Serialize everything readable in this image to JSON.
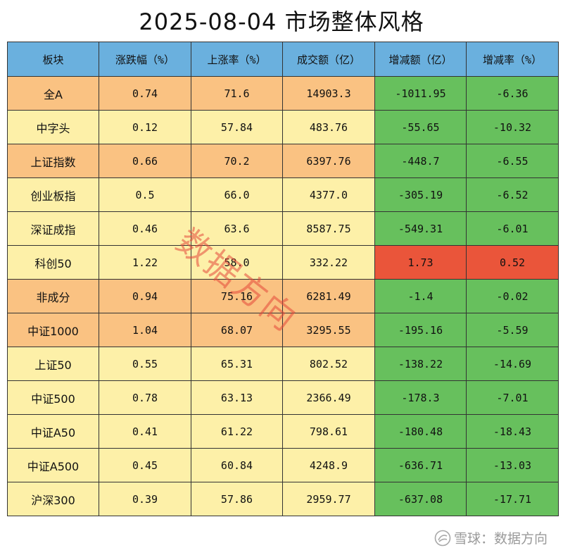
{
  "title": "2025-08-04 市场整体风格",
  "watermark": "数据方向",
  "footer": {
    "brand": "雪球：数据方向"
  },
  "colors": {
    "header": "#6ab0de",
    "orange": "#fac282",
    "light_yellow": "#fdf0a8",
    "green": "#67c05d",
    "red": "#ea553a"
  },
  "chart_data": {
    "type": "table",
    "columns": [
      "板块",
      "涨跌幅（%）",
      "上涨率（%）",
      "成交额（亿）",
      "增减额（亿）",
      "增减率（%）"
    ],
    "rows": [
      [
        "全A",
        "0.74",
        "71.6",
        "14903.3",
        "-1011.95",
        "-6.36"
      ],
      [
        "中字头",
        "0.12",
        "57.84",
        "483.76",
        "-55.65",
        "-10.32"
      ],
      [
        "上证指数",
        "0.66",
        "70.2",
        "6397.76",
        "-448.7",
        "-6.55"
      ],
      [
        "创业板指",
        "0.5",
        "66.0",
        "4377.0",
        "-305.19",
        "-6.52"
      ],
      [
        "深证成指",
        "0.46",
        "63.6",
        "8587.75",
        "-549.31",
        "-6.01"
      ],
      [
        "科创50",
        "1.22",
        "58.0",
        "332.22",
        "1.73",
        "0.52"
      ],
      [
        "非成分",
        "0.94",
        "75.16",
        "6281.49",
        "-1.4",
        "-0.02"
      ],
      [
        "中证1000",
        "1.04",
        "68.07",
        "3295.55",
        "-195.16",
        "-5.59"
      ],
      [
        "上证50",
        "0.55",
        "65.31",
        "802.52",
        "-138.22",
        "-14.69"
      ],
      [
        "中证500",
        "0.78",
        "63.13",
        "2366.49",
        "-178.3",
        "-7.01"
      ],
      [
        "中证A50",
        "0.41",
        "61.22",
        "798.61",
        "-180.48",
        "-18.43"
      ],
      [
        "中证A500",
        "0.45",
        "60.84",
        "4248.9",
        "-636.71",
        "-13.03"
      ],
      [
        "沪深300",
        "0.39",
        "57.86",
        "2959.77",
        "-637.08",
        "-17.71"
      ]
    ],
    "row_tone": [
      "orange",
      "light_yellow",
      "orange",
      "light_yellow",
      "light_yellow",
      "light_yellow",
      "orange",
      "orange",
      "light_yellow",
      "light_yellow",
      "light_yellow",
      "light_yellow",
      "light_yellow"
    ],
    "change_tone": [
      "green",
      "green",
      "green",
      "green",
      "green",
      "red",
      "green",
      "green",
      "green",
      "green",
      "green",
      "green",
      "green"
    ]
  }
}
